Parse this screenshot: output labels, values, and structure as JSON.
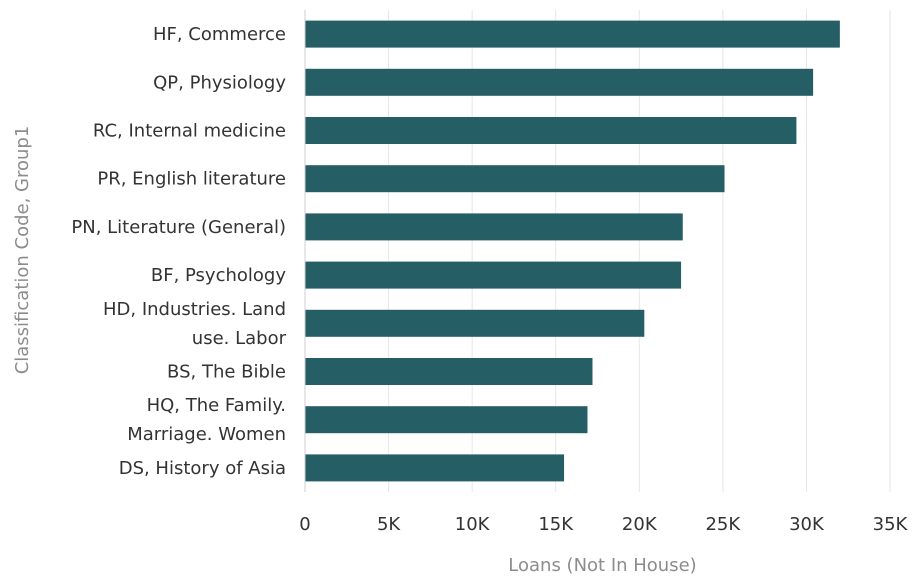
{
  "chart_data": {
    "type": "bar",
    "orientation": "horizontal",
    "categories": [
      [
        "HF, Commerce"
      ],
      [
        "QP, Physiology"
      ],
      [
        "RC, Internal medicine"
      ],
      [
        "PR, English literature"
      ],
      [
        "PN, Literature (General)"
      ],
      [
        "BF, Psychology"
      ],
      [
        "HD, Industries. Land",
        "use. Labor"
      ],
      [
        "BS, The Bible"
      ],
      [
        "HQ, The Family.",
        "Marriage. Women"
      ],
      [
        "DS, History of Asia"
      ]
    ],
    "values": [
      32000,
      30400,
      29400,
      25100,
      22600,
      22500,
      20300,
      17200,
      16900,
      15500
    ],
    "xlabel": "Loans (Not In House)",
    "ylabel": "Classification Code, Group1",
    "xlim": [
      0,
      35000
    ],
    "x_ticks": [
      0,
      5000,
      10000,
      15000,
      20000,
      25000,
      30000,
      35000
    ],
    "x_tick_labels": [
      "0",
      "5K",
      "10K",
      "15K",
      "20K",
      "25K",
      "30K",
      "35K"
    ],
    "grid": "vertical",
    "colors": {
      "bar": "#255e65",
      "grid": "#e6e6e6",
      "axis_title": "#8c8c8c",
      "text": "#333333"
    }
  }
}
